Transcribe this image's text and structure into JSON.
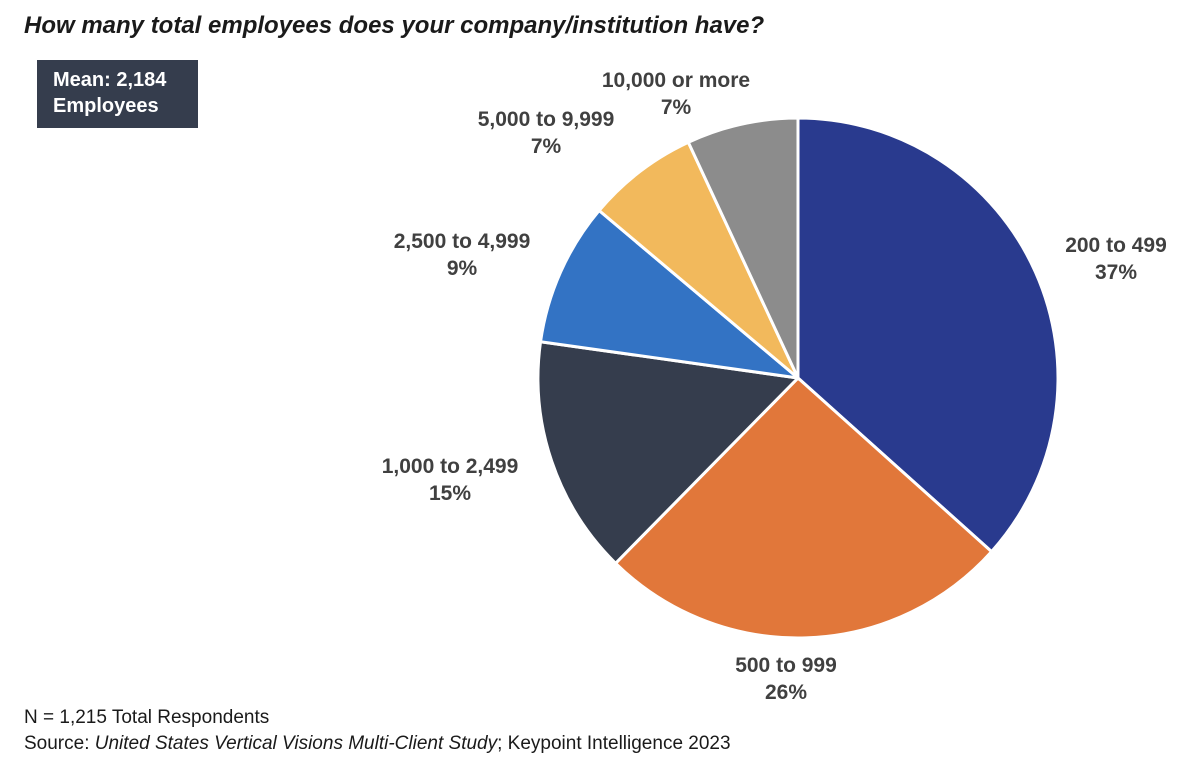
{
  "title": "How many total employees does your company/institution have?",
  "mean_box": {
    "line1": "Mean: 2,184",
    "line2": "Employees"
  },
  "footer": {
    "n_text": "N = 1,215 Total Respondents",
    "source_prefix": "Source: ",
    "source_study": "United States Vertical Visions Multi-Client Study",
    "source_suffix": "; Keypoint Intelligence 2023"
  },
  "chart_data": {
    "type": "pie",
    "title": "How many total employees does your company/institution have?",
    "slices": [
      {
        "label": "200 to 499",
        "value": 37,
        "display": "37%",
        "color": "#293a8e"
      },
      {
        "label": "500 to 999",
        "value": 26,
        "display": "26%",
        "color": "#e1773a"
      },
      {
        "label": "1,000 to 2,499",
        "value": 15,
        "display": "15%",
        "color": "#353d4d"
      },
      {
        "label": "2,500 to 4,999",
        "value": 9,
        "display": "9%",
        "color": "#3373c4"
      },
      {
        "label": "5,000 to 9,999",
        "value": 7,
        "display": "7%",
        "color": "#f2b95c"
      },
      {
        "label": "10,000 or more",
        "value": 7,
        "display": "7%",
        "color": "#8c8c8c"
      }
    ],
    "start": "12 o'clock",
    "direction": "clockwise",
    "legend": "none",
    "labels": "outside"
  }
}
